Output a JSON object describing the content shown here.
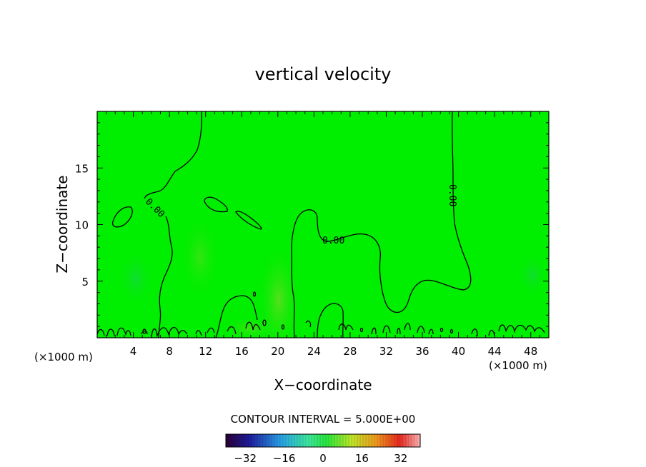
{
  "chart_data": {
    "type": "contour",
    "title": "vertical velocity",
    "xlabel": "X−coordinate",
    "ylabel": "Z−coordinate",
    "x_unit_left": "(×1000 m)",
    "x_unit_right": "(×1000 m)",
    "xlim": [
      0,
      50
    ],
    "ylim": [
      0,
      20
    ],
    "xticks": [
      4,
      8,
      12,
      16,
      20,
      24,
      28,
      32,
      36,
      40,
      44,
      48
    ],
    "yticks": [
      5,
      10,
      15
    ],
    "contour_interval_text": "CONTOUR INTERVAL = 5.000E+00",
    "contour_labels": [
      "0.00",
      "0.00",
      "0.00"
    ],
    "colorbar": {
      "ticks": [
        -32,
        -16,
        0,
        16,
        32
      ],
      "range": [
        -40,
        40
      ],
      "tick_labels": [
        "−32",
        "−16",
        "0",
        "16",
        "32"
      ]
    },
    "field_color": "#00ee00",
    "grid": false
  }
}
